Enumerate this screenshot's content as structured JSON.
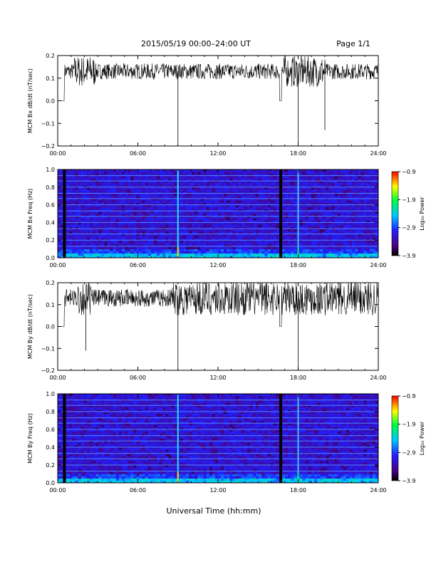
{
  "header": {
    "date_range": "2015/05/19   00:00–24:00 UT",
    "page": "Page 1/1"
  },
  "xlabel": "Universal Time (hh:mm)",
  "chart_data": [
    {
      "type": "line",
      "ylabel": "MCM Bx dB/dt (nT/sec)",
      "x_ticks": [
        "00:00",
        "06:00",
        "12:00",
        "18:00",
        "24:00"
      ],
      "xlim": [
        0,
        24
      ],
      "ylim": [
        -0.2,
        0.2
      ],
      "y_ticks": [
        "0.2",
        "0.1",
        "0.0",
        "−0.1",
        "−0.2"
      ],
      "y_tick_values": [
        0.2,
        0.1,
        0.0,
        -0.1,
        -0.2
      ],
      "trace_color": "#000000",
      "baseline": 0.13,
      "noise_amplitude": 0.035,
      "noisy_intervals": [
        [
          1.2,
          2.8
        ],
        [
          16.8,
          17.3
        ],
        [
          17.5,
          20.0
        ]
      ],
      "gaps": [
        [
          0,
          0.5
        ],
        [
          16.6,
          16.75
        ]
      ],
      "spikes": [
        {
          "x": 9.0,
          "y": -0.2
        },
        {
          "x": 18.0,
          "y": -0.2
        },
        {
          "x": 20.0,
          "y": -0.13
        }
      ]
    },
    {
      "type": "heatmap",
      "ylabel": "MCM Bx Freq (Hz)",
      "x_ticks": [
        "00:00",
        "06:00",
        "12:00",
        "18:00",
        "24:00"
      ],
      "xlim": [
        0,
        24
      ],
      "ylim": [
        0.0,
        1.0
      ],
      "y_ticks": [
        "1.0",
        "0.8",
        "0.6",
        "0.4",
        "0.2",
        "0.0"
      ],
      "y_tick_values": [
        1.0,
        0.8,
        0.6,
        0.4,
        0.2,
        0.0
      ],
      "harmonic_lines_hz": [
        0.13,
        0.2,
        0.27,
        0.33,
        0.4,
        0.47,
        0.53,
        0.6,
        0.67,
        0.73,
        0.8,
        0.87,
        0.93
      ],
      "bright_columns": [
        9.0,
        18.0
      ],
      "dark_columns": [
        0.5,
        16.7
      ],
      "colorbar": {
        "label": "Log₁₀ Power",
        "ticks": [
          "−0.9",
          "−1.9",
          "−2.9",
          "−3.9"
        ],
        "range": [
          -3.9,
          -0.9
        ]
      }
    },
    {
      "type": "line",
      "ylabel": "MCM By dB/dt (nT/sec)",
      "x_ticks": [
        "00:00",
        "06:00",
        "12:00",
        "18:00",
        "24:00"
      ],
      "xlim": [
        0,
        24
      ],
      "ylim": [
        -0.2,
        0.2
      ],
      "y_ticks": [
        "0.2",
        "0.1",
        "0.0",
        "−0.1",
        "−0.2"
      ],
      "y_tick_values": [
        0.2,
        0.1,
        0.0,
        -0.1,
        -0.2
      ],
      "trace_color": "#000000",
      "baseline": 0.13,
      "noise_amplitude": 0.04,
      "noisy_intervals": [
        [
          1.5,
          2.5
        ],
        [
          8.5,
          24
        ]
      ],
      "gaps": [
        [
          0,
          0.5
        ],
        [
          16.6,
          16.75
        ]
      ],
      "spikes": [
        {
          "x": 9.0,
          "y": -0.2
        },
        {
          "x": 18.0,
          "y": -0.2
        },
        {
          "x": 2.1,
          "y": -0.11
        }
      ]
    },
    {
      "type": "heatmap",
      "ylabel": "MCM By Freq (Hz)",
      "x_ticks": [
        "00:00",
        "06:00",
        "12:00",
        "18:00",
        "24:00"
      ],
      "xlim": [
        0,
        24
      ],
      "ylim": [
        0.0,
        1.0
      ],
      "y_ticks": [
        "1.0",
        "0.8",
        "0.6",
        "0.4",
        "0.2",
        "0.0"
      ],
      "y_tick_values": [
        1.0,
        0.8,
        0.6,
        0.4,
        0.2,
        0.0
      ],
      "harmonic_lines_hz": [
        0.13,
        0.2,
        0.27,
        0.33,
        0.4,
        0.47,
        0.53,
        0.6,
        0.67,
        0.73,
        0.8,
        0.87,
        0.93
      ],
      "bright_columns": [
        9.0,
        18.0
      ],
      "dark_columns": [
        0.5,
        16.7
      ],
      "colorbar": {
        "label": "Log₁₀ Power",
        "ticks": [
          "−0.9",
          "−1.9",
          "−2.9",
          "−3.9"
        ],
        "range": [
          -3.9,
          -0.9
        ]
      }
    }
  ]
}
